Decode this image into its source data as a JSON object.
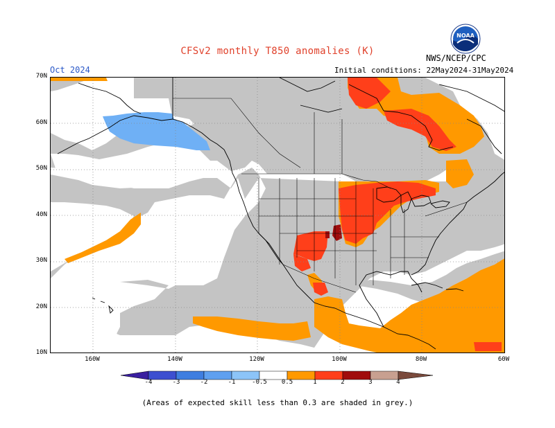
{
  "title": "CFSv2 monthly T850 anomalies (K)",
  "agency": "NWS/NCEP/CPC",
  "month": "Oct 2024",
  "initial_conditions": "Initial conditions: 22May2024-31May2024",
  "lat_labels": [
    "70N",
    "60N",
    "50N",
    "40N",
    "30N",
    "20N",
    "10N"
  ],
  "lon_labels": [
    "160W",
    "140W",
    "120W",
    "100W",
    "80W",
    "60W"
  ],
  "colorbar": {
    "labels": [
      "-4",
      "-3",
      "-2",
      "-1",
      "-0.5",
      "0.5",
      "1",
      "2",
      "3",
      "4"
    ],
    "colors": [
      "#3a1fa0",
      "#3d4fd0",
      "#3f7ee0",
      "#5fa0f0",
      "#8cc4f8",
      "#ffffff",
      "#ff9900",
      "#ff3f1a",
      "#a00c0c",
      "#c8a090",
      "#7a4a3c"
    ]
  },
  "colors": {
    "land_grey": "#c4c4c4",
    "orange": "#ff9900",
    "red": "#ff3f1a",
    "dark_red": "#a00c0c",
    "light_blue": "#6fb0f5"
  },
  "caption": "(Areas of expected skill less than 0.3 are shaded in grey.)",
  "logo_text": "NOAA"
}
